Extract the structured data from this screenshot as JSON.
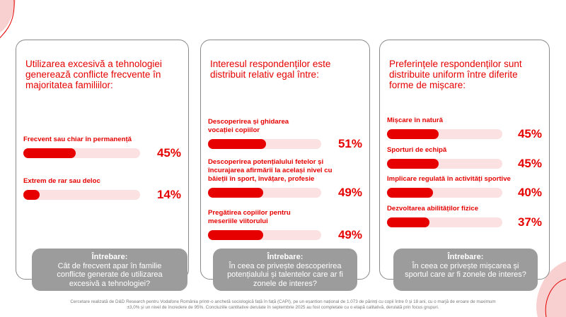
{
  "colors": {
    "accent": "#e60000",
    "track": "#fbe1e1",
    "question_bg": "#9c9c9c",
    "border": "#8a8a8a",
    "decor": "#f8d0d0"
  },
  "cards": [
    {
      "title": "Utilizarea excesivă a tehnologiei generează conflicte frecvente în majoritatea familiilor:",
      "items": [
        {
          "label": "Frecvent sau chiar în permanență",
          "pct": "45%"
        },
        {
          "label": "Extrem de rar sau deloc",
          "pct": "14%"
        }
      ],
      "question": {
        "head": "Întrebare:",
        "text": "Cât de frecvent apar în familie conflicte generate de utilizarea excesivă a tehnologiei?"
      }
    },
    {
      "title": "Interesul respondenților este distribuit relativ egal între:",
      "items": [
        {
          "label": "Descoperirea și ghidarea vocației copiilor",
          "pct": "51%"
        },
        {
          "label": "Descoperirea potențialului fetelor și încurajarea afirmării la același nivel cu băieții în sport, învățare, profesie",
          "pct": "49%"
        },
        {
          "label": "Pregătirea copiilor pentru meseriile viitorului",
          "pct": "49%"
        }
      ],
      "question": {
        "head": "Întrebare:",
        "text": "În ceea ce privește descoperirea potențialului și talentelor care ar fi zonele de interes?"
      }
    },
    {
      "title": "Preferințele respondenților sunt distribuite uniform între diferite forme de mișcare:",
      "items": [
        {
          "label": "Mișcare în natură",
          "pct": "45%"
        },
        {
          "label": "Sporturi de echipă",
          "pct": "45%"
        },
        {
          "label": "Implicare regulată în activități sportive",
          "pct": "40%"
        },
        {
          "label": "Dezvoltarea abilităților fizice",
          "pct": "37%"
        }
      ],
      "question": {
        "head": "Întrebare:",
        "text": "În ceea ce privește mișcarea și sportul care ar fi zonele de interes?"
      }
    }
  ],
  "footnote": "Cercetare realizată de D&D Research pentru Vodafone România printr-o anchetă sociologică față în față (CAPI), pe un eșantion național de 1.073 de părinți cu copii între 0 și 18 ani, cu o marjă de eroare de maximum ±3,0% și un nivel de încredere de 95%. Concluziile cantitative derulate în septembrie 2025 au fost completate cu o etapă calitativă, derulată prin focus grupuri.",
  "chart_data": [
    {
      "type": "bar",
      "categories": [
        "Frecvent sau chiar în permanență",
        "Extrem de rar sau deloc"
      ],
      "values": [
        45,
        14
      ],
      "ylim": [
        0,
        100
      ]
    },
    {
      "type": "bar",
      "categories": [
        "Descoperirea și ghidarea vocației copiilor",
        "Descoperirea potențialului fetelor și încurajarea afirmării la același nivel cu băieții în sport, învățare, profesie",
        "Pregătirea copiilor pentru meseriile viitorului"
      ],
      "values": [
        51,
        49,
        49
      ],
      "ylim": [
        0,
        100
      ]
    },
    {
      "type": "bar",
      "categories": [
        "Mișcare în natură",
        "Sporturi de echipă",
        "Implicare regulată în activități sportive",
        "Dezvoltarea abilităților fizice"
      ],
      "values": [
        45,
        45,
        40,
        37
      ],
      "ylim": [
        0,
        100
      ]
    }
  ]
}
